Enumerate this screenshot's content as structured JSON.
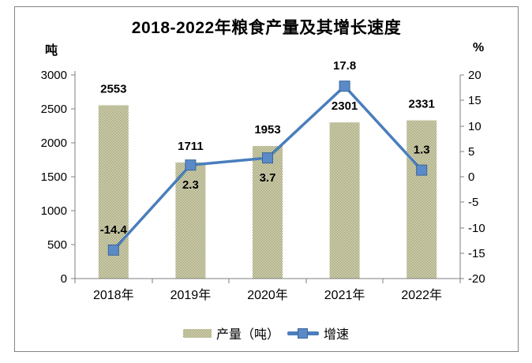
{
  "title": "2018-2022年粮食产量及其增长速度",
  "legend": [
    {
      "label": "产量（吨）",
      "swatch": "bar-pattern-swatch"
    },
    {
      "label": "增速",
      "swatch": "line-marker-swatch"
    }
  ],
  "colors": {
    "bar_pattern": "#7f7f38",
    "line": "#4a7ebc",
    "marker_fill": "#5b8ac8",
    "marker_edge": "#3c6598",
    "axis": "#7f7f7f",
    "text": "#000000",
    "frame_border": "#848484",
    "background": "#ffffff"
  },
  "chart_data": {
    "type": "combo",
    "title": "2018-2022年粮食产量及其增长速度",
    "categories": [
      "2018年",
      "2019年",
      "2020年",
      "2021年",
      "2022年"
    ],
    "series": [
      {
        "name": "产量（吨）",
        "type": "bar",
        "axis": "left",
        "values": [
          2553,
          1711,
          1953,
          2301,
          2331
        ]
      },
      {
        "name": "增速",
        "type": "line",
        "axis": "right",
        "values": [
          -14.4,
          2.3,
          3.7,
          17.8,
          1.3
        ],
        "label_position": [
          "above",
          "below",
          "below",
          "above",
          "above"
        ]
      }
    ],
    "left_axis": {
      "label": "吨",
      "min": 0,
      "max": 3000,
      "step": 500
    },
    "right_axis": {
      "label": "%",
      "min": -20,
      "max": 20,
      "step": 5
    },
    "grid": false,
    "legend_position": "bottom",
    "data_labels": true
  }
}
